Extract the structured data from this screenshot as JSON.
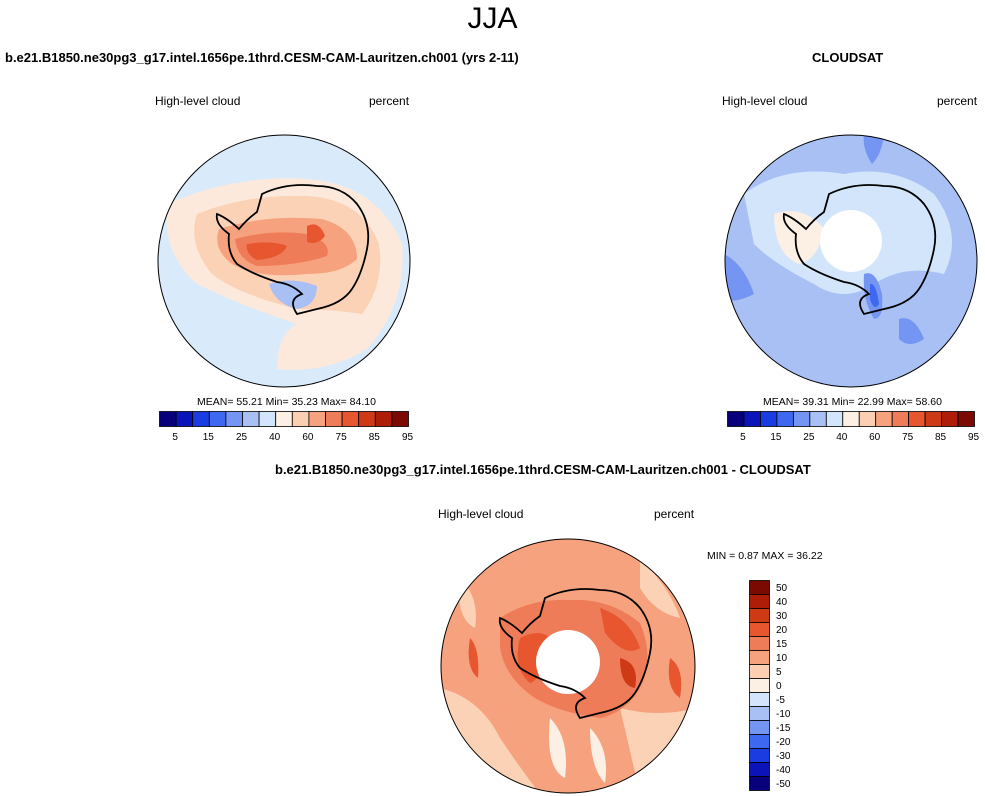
{
  "figure": {
    "season": "JJA"
  },
  "panels": {
    "model": {
      "case_title": "b.e21.B1850.ne30pg3_g17.intel.1656pe.1thrd.CESM-CAM-Lauritzen.ch001 (yrs 2-11)",
      "variable": "High-level cloud",
      "units": "percent",
      "stats": {
        "mean_label": "MEAN=",
        "mean": "55.21",
        "min_label": "Min=",
        "min": "35.23",
        "max_label": "Max=",
        "max": "84.10"
      }
    },
    "obs": {
      "case_title": "CLOUDSAT",
      "variable": "High-level cloud",
      "units": "percent",
      "stats": {
        "mean_label": "MEAN=",
        "mean": "39.31",
        "min_label": "Min=",
        "min": "22.99",
        "max_label": "Max=",
        "max": "58.60"
      }
    },
    "diff": {
      "case_title": "b.e21.B1850.ne30pg3_g17.intel.1656pe.1thrd.CESM-CAM-Lauritzen.ch001 - CLOUDSAT",
      "variable": "High-level cloud",
      "units": "percent",
      "minmax_text": "MIN =   0.87 MAX =  36.22"
    }
  },
  "colorbars": {
    "horizontal": {
      "colors": [
        "#08007a",
        "#0a14b8",
        "#1a3ce0",
        "#3f68f0",
        "#7496f2",
        "#a9c0f4",
        "#d3e5fb",
        "#fcf0e4",
        "#fccfb3",
        "#f6a27f",
        "#ef7c58",
        "#e8562f",
        "#cf3a16",
        "#ad1d08",
        "#7b0a02"
      ],
      "tick_labels": [
        "5",
        "15",
        "25",
        "40",
        "60",
        "75",
        "85",
        "95"
      ]
    },
    "vertical": {
      "colors_top_to_bottom": [
        "#7b0a02",
        "#ad1d08",
        "#cf3a16",
        "#e8562f",
        "#ef7c58",
        "#f6a27f",
        "#fccfb3",
        "#fcf0e4",
        "#d3e5fb",
        "#a9c0f4",
        "#7496f2",
        "#3f68f0",
        "#1a3ce0",
        "#0a14b8",
        "#08007a"
      ],
      "tick_labels": [
        "50",
        "40",
        "30",
        "20",
        "15",
        "10",
        "5",
        "0",
        "-5",
        "-10",
        "-15",
        "-20",
        "-30",
        "-40",
        "-50"
      ]
    }
  }
}
